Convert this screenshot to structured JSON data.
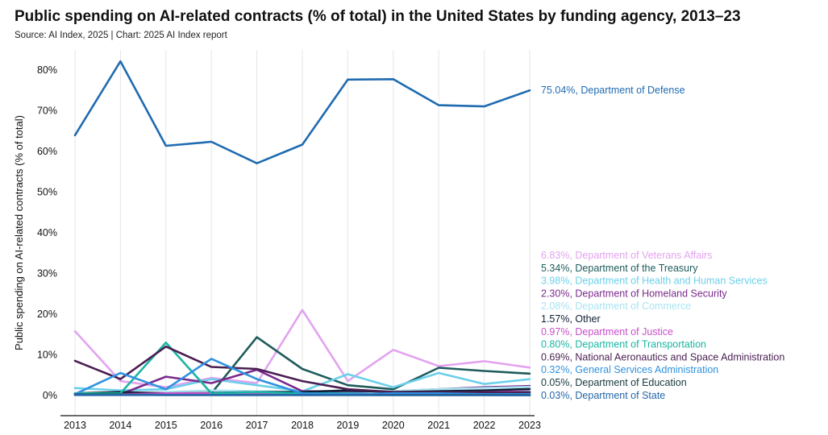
{
  "header": {
    "title": "Public spending on AI-related contracts (% of total) in the United States by funding agency, 2013–23",
    "source": "Source: AI Index, 2025 | Chart: 2025 AI Index report"
  },
  "chart_data": {
    "type": "line",
    "title": "Public spending on AI-related contracts (% of total) in the United States by funding agency, 2013–23",
    "xlabel": "",
    "ylabel": "Public spending on AI-related contracts (% of total)",
    "x": [
      "2013",
      "2014",
      "2015",
      "2016",
      "2017",
      "2018",
      "2019",
      "2020",
      "2021",
      "2022",
      "2023"
    ],
    "ylim": [
      -5,
      85
    ],
    "yticks": [
      0,
      10,
      20,
      30,
      40,
      50,
      60,
      70,
      80
    ],
    "ytick_labels": [
      "0%",
      "10%",
      "20%",
      "30%",
      "40%",
      "50%",
      "60%",
      "70%",
      "80%"
    ],
    "grid": "vertical",
    "series": [
      {
        "name": "Department of Veterans Affairs",
        "label": "6.83%, Department of Veterans Affairs",
        "color": "#e3a3f0",
        "values": [
          15.8,
          3.5,
          2.0,
          4.3,
          3.0,
          21.0,
          3.5,
          11.2,
          7.2,
          8.4,
          6.83
        ]
      },
      {
        "name": "Department of the Treasury",
        "label": "5.34%, Department of the Treasury",
        "color": "#1f5b5b",
        "values": [
          0.5,
          0.3,
          0.2,
          0.5,
          14.3,
          6.5,
          2.5,
          1.5,
          6.8,
          6.0,
          5.34
        ]
      },
      {
        "name": "Department of Health and Human Services",
        "label": "3.98%, Department of Health and Human Services",
        "color": "#6cd0ea",
        "values": [
          1.8,
          1.2,
          1.5,
          4.0,
          2.5,
          1.0,
          5.2,
          2.0,
          5.5,
          2.8,
          3.98
        ]
      },
      {
        "name": "Department of Homeland Security",
        "label": "2.30%, Department of Homeland Security",
        "color": "#7a2a8c",
        "values": [
          0.2,
          0.3,
          4.6,
          3.0,
          6.3,
          1.0,
          1.0,
          1.0,
          1.5,
          2.0,
          2.3
        ]
      },
      {
        "name": "Department of Commerce",
        "label": "2.08%, Department of Commerce",
        "color": "#a9e4f2",
        "values": [
          0.5,
          0.5,
          0.8,
          1.2,
          1.0,
          0.8,
          1.2,
          1.0,
          1.5,
          1.8,
          2.08
        ]
      },
      {
        "name": "Other",
        "label": "1.57%, Other",
        "color": "#0d1e33",
        "values": [
          0.5,
          0.8,
          0.5,
          0.6,
          0.8,
          0.8,
          1.2,
          0.8,
          1.0,
          1.2,
          1.57
        ]
      },
      {
        "name": "Department of Justice",
        "label": "0.97%, Department of Justice",
        "color": "#c850c8",
        "values": [
          0.3,
          0.3,
          0.5,
          0.5,
          0.5,
          0.5,
          0.5,
          0.3,
          0.5,
          0.8,
          0.97
        ]
      },
      {
        "name": "Department of Transportation",
        "label": "0.80%, Department of Transportation",
        "color": "#1bb5a4",
        "values": [
          0.5,
          0.5,
          13.0,
          0.5,
          0.8,
          0.5,
          0.5,
          0.3,
          0.5,
          0.5,
          0.8
        ]
      },
      {
        "name": "National Aeronautics and Space Administration",
        "label": "0.69%, National Aeronautics and Space Administration",
        "color": "#4a1f52",
        "values": [
          8.5,
          4.0,
          12.0,
          7.0,
          6.5,
          3.5,
          1.5,
          0.8,
          0.8,
          0.8,
          0.69
        ]
      },
      {
        "name": "General Services Administration",
        "label": "0.32%, General Services Administration",
        "color": "#2f92e0",
        "values": [
          0.3,
          5.5,
          1.5,
          9.0,
          4.0,
          0.5,
          0.3,
          0.5,
          0.5,
          0.3,
          0.32
        ]
      },
      {
        "name": "Department of Education",
        "label": "0.05%, Department of Education",
        "color": "#18393d",
        "values": [
          0.2,
          0.2,
          0.1,
          0.1,
          0.1,
          0.1,
          0.1,
          0.1,
          0.1,
          0.1,
          0.05
        ]
      },
      {
        "name": "Department of State",
        "label": "0.03%, Department of State",
        "color": "#2566a8",
        "values": [
          0.1,
          0.1,
          0.1,
          0.1,
          0.1,
          0.1,
          0.1,
          0.05,
          0.05,
          0.05,
          0.03
        ]
      },
      {
        "name": "Department of Defense",
        "label": "75.04%, Department of Defense",
        "color": "#1f6bb0",
        "values": [
          64.0,
          82.2,
          61.4,
          62.4,
          57.1,
          61.7,
          77.7,
          77.8,
          71.4,
          71.1,
          75.04
        ]
      }
    ]
  }
}
